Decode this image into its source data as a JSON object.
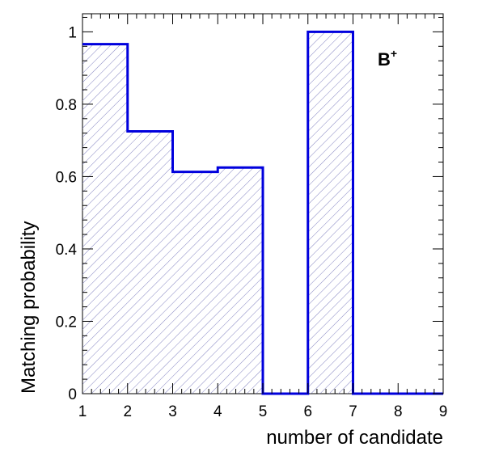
{
  "chart_data": {
    "type": "bar",
    "style": "step-histogram",
    "categories": [
      "1-2",
      "2-3",
      "3-4",
      "4-5",
      "5-6",
      "6-7",
      "7-8",
      "8-9"
    ],
    "x_edges": [
      1,
      2,
      3,
      4,
      5,
      6,
      7,
      8,
      9
    ],
    "values": [
      0.966,
      0.725,
      0.613,
      0.625,
      0.0,
      1.0,
      0.0,
      0.0
    ],
    "title": "",
    "xlabel": "number of candidate",
    "ylabel": "Matching probability",
    "xlim": [
      1,
      9
    ],
    "ylim": [
      0,
      1.05
    ],
    "x_ticks": [
      "1",
      "2",
      "3",
      "4",
      "5",
      "6",
      "7",
      "8",
      "9"
    ],
    "y_ticks": [
      "0",
      "0.2",
      "0.4",
      "0.6",
      "0.8",
      "1"
    ],
    "y_tick_values": [
      0,
      0.2,
      0.4,
      0.6,
      0.8,
      1.0
    ],
    "annotation": {
      "base": "B",
      "superscript": "+"
    },
    "grid": false,
    "legend": "none",
    "line_color": "#0000dd",
    "hatch_color": "#7777bb"
  }
}
